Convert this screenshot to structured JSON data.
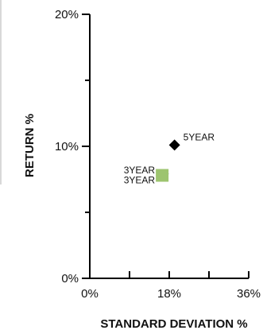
{
  "chart_data": {
    "type": "scatter",
    "xlabel": "STANDARD DEVIATION %",
    "ylabel": "RETURN %",
    "xlim": [
      0,
      36
    ],
    "ylim": [
      0,
      20
    ],
    "x_ticks": [
      0,
      18,
      36
    ],
    "x_tick_labels": [
      "0%",
      "18%",
      "36%"
    ],
    "x_minor_ticks": [
      9,
      27
    ],
    "y_ticks": [
      0,
      10,
      20
    ],
    "y_tick_labels": [
      "0%",
      "10%",
      "20%"
    ],
    "y_minor_ticks": [
      5,
      15
    ],
    "grid": false,
    "points": [
      {
        "label": "5YEAR",
        "x": 19.2,
        "y": 10.1,
        "marker": "diamond",
        "color": "#000000",
        "label_side": "right"
      },
      {
        "label": "3YEAR",
        "x": 17.2,
        "y": 7.9,
        "marker": "triangle",
        "color": "#000000",
        "label_side": "left"
      },
      {
        "label": "3YEAR",
        "x": 16.4,
        "y": 7.8,
        "marker": "square",
        "color": "#9dc46f",
        "label_side": "left"
      }
    ]
  },
  "colors": {
    "axis": "#000000",
    "text": "#111111",
    "accent_green": "#9dc46f"
  }
}
